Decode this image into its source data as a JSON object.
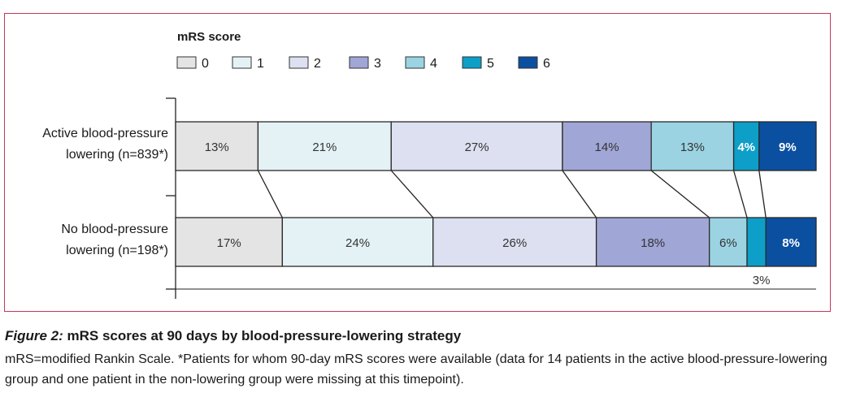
{
  "chart_data": {
    "type": "bar",
    "orientation": "horizontal",
    "stacked": true,
    "legend": {
      "title": "mRS score",
      "placement": "top",
      "entries": [
        "0",
        "1",
        "2",
        "3",
        "4",
        "5",
        "6"
      ],
      "colors": [
        "#e4e4e4",
        "#e4f2f6",
        "#dde0f0",
        "#a0a6d6",
        "#9bd3e3",
        "#0d9fc7",
        "#0b4fa0"
      ]
    },
    "categories": [
      [
        "Active blood-pressure",
        "lowering (n=839*)"
      ],
      [
        "No blood-pressure",
        "lowering (n=198*)"
      ]
    ],
    "series": [
      {
        "name": "0",
        "values": [
          13,
          17
        ],
        "labels": [
          "13%",
          "17%"
        ]
      },
      {
        "name": "1",
        "values": [
          21,
          24
        ],
        "labels": [
          "21%",
          "24%"
        ]
      },
      {
        "name": "2",
        "values": [
          27,
          26
        ],
        "labels": [
          "27%",
          "26%"
        ]
      },
      {
        "name": "3",
        "values": [
          14,
          18
        ],
        "labels": [
          "14%",
          "18%"
        ]
      },
      {
        "name": "4",
        "values": [
          13,
          6
        ],
        "labels": [
          "13%",
          "6%"
        ]
      },
      {
        "name": "5",
        "values": [
          4,
          3
        ],
        "labels": [
          "4%",
          "3%"
        ]
      },
      {
        "name": "6",
        "values": [
          9,
          8
        ],
        "labels": [
          "9%",
          "8%"
        ]
      }
    ],
    "label_colors": [
      "#333333",
      "#333333",
      "#333333",
      "#333333",
      "#333333",
      "#ffffff",
      "#ffffff"
    ],
    "outside_labels": [
      {
        "category": 1,
        "series": 5
      }
    ],
    "xlim": [
      0,
      100
    ]
  },
  "caption": {
    "figure_label": "Figure 2:",
    "title": " mRS scores at 90 days by blood-pressure-lowering strategy",
    "body": "mRS=modified Rankin Scale. *Patients for whom 90-day mRS scores were available (data for 14 patients in the active blood-pressure-lowering group and one patient in the non-lowering group were missing at this timepoint)."
  }
}
